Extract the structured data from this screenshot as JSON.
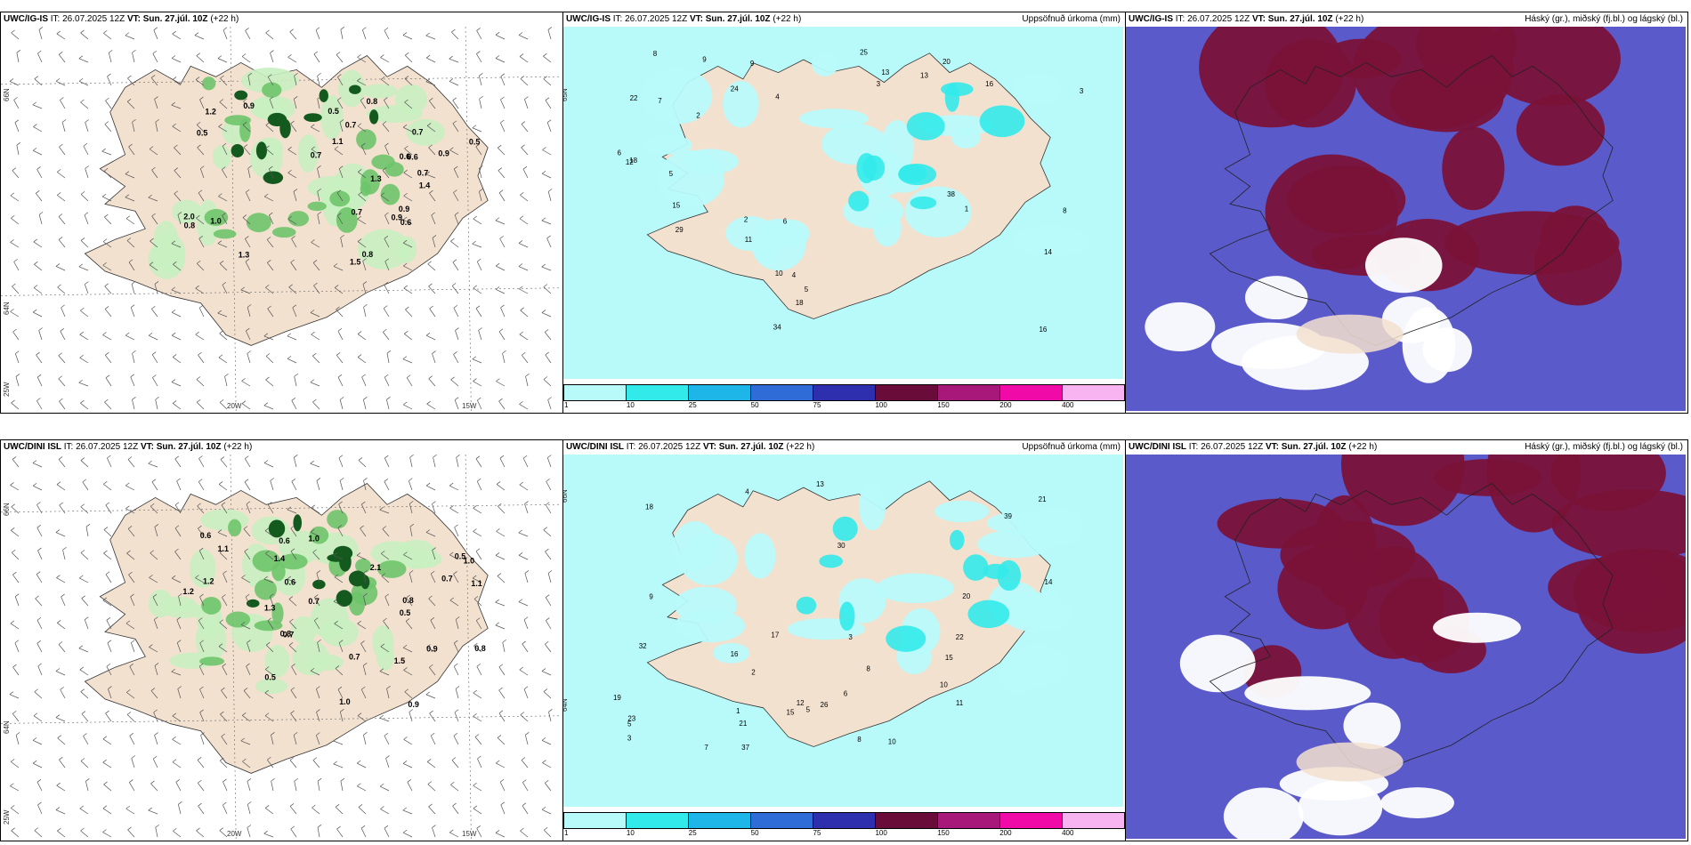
{
  "rows": [
    {
      "model_name": "UWC/IG-IS",
      "it_label": "IT: 26.07.2025 12Z",
      "vt_label": "VT: Sun. 27.júl. 10Z",
      "lead_label": "(+22 h)",
      "precip_field": "Uppsöfnuð úrkoma (mm)",
      "cloud_field": "Háský (gr.), miðský (fj.bl.) og lágský (bl.)",
      "wind_values": [
        "1.2",
        "0.7",
        "0.6",
        "0.9",
        "2.0",
        "1.3",
        "1.5",
        "0.8",
        "1.0",
        "0.5",
        "1.1",
        "1.4",
        "0.9",
        "0.5",
        "0.7",
        "0.9",
        "0.8",
        "0.7",
        "0.6",
        "0.5",
        "0.7",
        "1.3",
        "0.8",
        "0.9",
        "0.6",
        "0.7"
      ],
      "precip_values": [
        "16",
        "5",
        "4",
        "2",
        "18",
        "6",
        "13",
        "8",
        "9",
        "10",
        "3",
        "24",
        "20",
        "15",
        "25",
        "22",
        "29",
        "34",
        "38",
        "14",
        "18",
        "12",
        "16",
        "8",
        "4",
        "7",
        "5",
        "3",
        "2",
        "1",
        "11",
        "6",
        "9",
        "13"
      ]
    },
    {
      "model_name": "UWC/DINI ISL",
      "it_label": "IT: 26.07.2025 12Z",
      "vt_label": "VT: Sun. 27.júl. 10Z",
      "lead_label": "(+22 h)",
      "precip_field": "Uppsöfnuð úrkoma (mm)",
      "cloud_field": "Háský (gr.), miðský (fj.bl.) og lágský (bl.)",
      "wind_values": [
        "0.5",
        "1.0",
        "0.9",
        "2.1",
        "1.1",
        "0.7",
        "0.8",
        "1.3",
        "1.0",
        "0.6",
        "1.4",
        "1.2",
        "0.5",
        "0.7",
        "0.8",
        "1.0",
        "0.6",
        "1.5",
        "0.7",
        "1.2",
        "0.8",
        "0.7",
        "0.5",
        "1.1",
        "0.9",
        "0.6"
      ],
      "precip_values": [
        "16",
        "3",
        "10",
        "8",
        "22",
        "21",
        "15",
        "20",
        "11",
        "9",
        "5",
        "4",
        "19",
        "18",
        "37",
        "30",
        "32",
        "23",
        "39",
        "15",
        "21",
        "12",
        "17",
        "7",
        "3",
        "2",
        "1",
        "6",
        "14",
        "13",
        "10",
        "8",
        "5",
        "26"
      ]
    }
  ],
  "axes": {
    "lat_top": "66N",
    "lat_bottom": "64N",
    "lat_bottom_left": "25W",
    "lon_left": "20W",
    "lon_right": "15W"
  },
  "colorbar": {
    "ticks": [
      "1",
      "10",
      "25",
      "50",
      "75",
      "100",
      "150",
      "200",
      "400"
    ],
    "colors": [
      "#b8fafa",
      "#33eaea",
      "#1eb6e8",
      "#2f6cd8",
      "#2d2fae",
      "#6a0c3a",
      "#a8177a",
      "#f00aa8",
      "#f8b4f0"
    ]
  },
  "colors": {
    "land": "#f3e1cf",
    "precip_light": "#b8fafa",
    "precip_mid": "#33eaea",
    "green_light": "#c8f0c0",
    "green_mid": "#6ec46a",
    "green_dark": "#145a1e",
    "cloud_blue": "#5a5acb",
    "cloud_red": "#7a1238"
  }
}
